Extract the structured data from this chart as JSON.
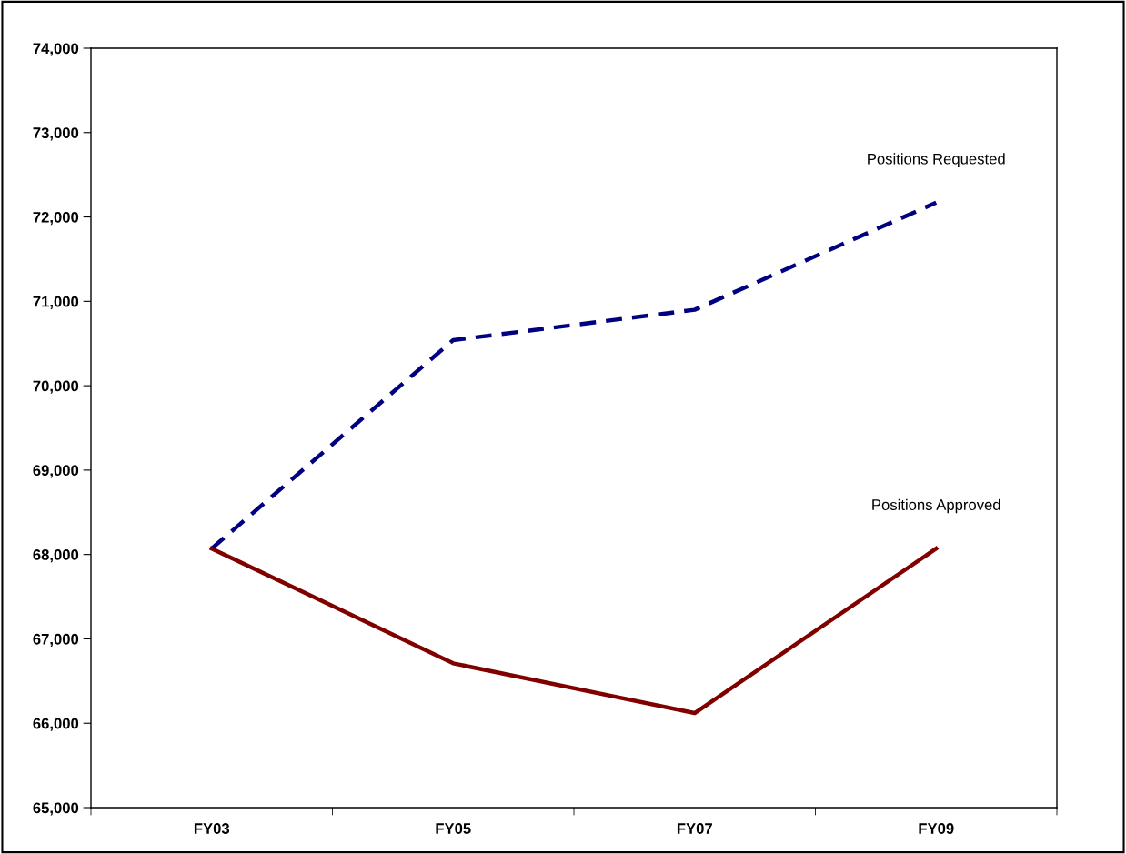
{
  "chart_data": {
    "type": "line",
    "categories": [
      "FY03",
      "FY05",
      "FY07",
      "FY09"
    ],
    "series": [
      {
        "name": "Positions Requested",
        "color": "#000080",
        "values": [
          68070,
          70540,
          70900,
          72170
        ],
        "line_style": "dashed"
      },
      {
        "name": "Positions Approved",
        "color": "#800000",
        "values": [
          68070,
          66710,
          66120,
          68070
        ],
        "line_style": "solid"
      }
    ],
    "ylim": [
      65000,
      74000
    ],
    "yticks": [
      {
        "value": 65000,
        "label": "65,000"
      },
      {
        "value": 66000,
        "label": "66,000"
      },
      {
        "value": 67000,
        "label": "67,000"
      },
      {
        "value": 68000,
        "label": "68,000"
      },
      {
        "value": 69000,
        "label": "69,000"
      },
      {
        "value": 70000,
        "label": "70,000"
      },
      {
        "value": 71000,
        "label": "71,000"
      },
      {
        "value": 72000,
        "label": "72,000"
      },
      {
        "value": 73000,
        "label": "73,000"
      },
      {
        "value": 74000,
        "label": "74,000"
      }
    ],
    "grid": false,
    "legend": false,
    "marker": "none"
  }
}
